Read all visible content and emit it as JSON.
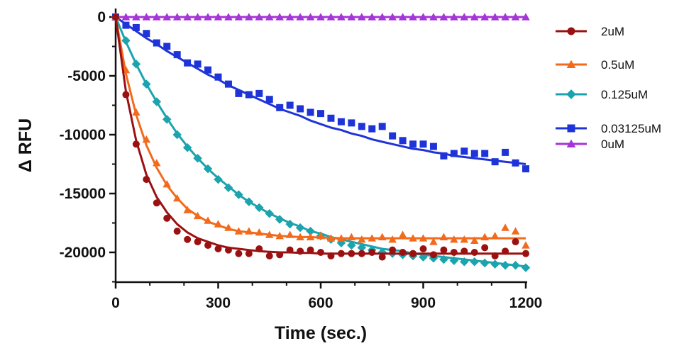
{
  "chart_data": {
    "type": "scatter",
    "title": "",
    "xlabel": "Time (sec.)",
    "ylabel": "Δ RFU",
    "xlim": [
      0,
      1200
    ],
    "ylim": [
      -22500,
      0
    ],
    "x_ticks": [
      0,
      300,
      600,
      900,
      1200
    ],
    "x_tick_labels": [
      "0",
      "300",
      "600",
      "900",
      "1200"
    ],
    "y_ticks": [
      0,
      -5000,
      -10000,
      -15000,
      -20000
    ],
    "y_tick_labels": [
      "0",
      "-5000",
      "-10000",
      "-15000",
      "-20000"
    ],
    "grid": false,
    "legend_position": "right",
    "series": [
      {
        "name": "2uM",
        "color": "#9b1111",
        "marker": "circle",
        "x": [
          0,
          30,
          60,
          90,
          120,
          150,
          180,
          210,
          240,
          270,
          300,
          330,
          360,
          390,
          420,
          450,
          480,
          510,
          540,
          570,
          600,
          630,
          660,
          690,
          720,
          750,
          780,
          810,
          840,
          870,
          900,
          930,
          960,
          990,
          1020,
          1050,
          1080,
          1110,
          1140,
          1170,
          1200
        ],
        "y": [
          0,
          -6600,
          -10800,
          -13800,
          -15800,
          -17100,
          -18200,
          -18900,
          -19100,
          -19400,
          -19700,
          -19800,
          -20100,
          -20100,
          -19700,
          -20300,
          -20200,
          -19800,
          -19900,
          -19800,
          -20000,
          -20300,
          -20100,
          -20100,
          -20100,
          -20000,
          -20400,
          -19800,
          -20000,
          -20100,
          -19700,
          -20200,
          -19800,
          -20000,
          -19900,
          -20000,
          -19600,
          -20300,
          -19900,
          -19100,
          -20100
        ],
        "fit": [
          0,
          -6300,
          -10500,
          -13400,
          -15300,
          -16600,
          -17600,
          -18300,
          -18800,
          -19100,
          -19400,
          -19600,
          -19700,
          -19800,
          -19900,
          -19950,
          -20000,
          -20000,
          -20050,
          -20050,
          -20100,
          -20100,
          -20100,
          -20100,
          -20100,
          -20100,
          -20100,
          -20100,
          -20100,
          -20100,
          -20100,
          -20100,
          -20100,
          -20100,
          -20100,
          -20100,
          -20100,
          -20100,
          -20100,
          -20100,
          -20100
        ]
      },
      {
        "name": "0.5uM",
        "color": "#f26b1d",
        "marker": "triangle",
        "x": [
          0,
          30,
          60,
          90,
          120,
          150,
          180,
          210,
          240,
          270,
          300,
          330,
          360,
          390,
          420,
          450,
          480,
          510,
          540,
          570,
          600,
          630,
          660,
          690,
          720,
          750,
          780,
          810,
          840,
          870,
          900,
          930,
          960,
          990,
          1020,
          1050,
          1080,
          1110,
          1140,
          1170,
          1200
        ],
        "y": [
          0,
          -4500,
          -8100,
          -10400,
          -12400,
          -14200,
          -15400,
          -16400,
          -16900,
          -17300,
          -17600,
          -17900,
          -18200,
          -18200,
          -18300,
          -18500,
          -18600,
          -18500,
          -18700,
          -18700,
          -18600,
          -18800,
          -18800,
          -18700,
          -18900,
          -18800,
          -18700,
          -18900,
          -18500,
          -18800,
          -18800,
          -19100,
          -18700,
          -18900,
          -18900,
          -19000,
          -18700,
          -18600,
          -17900,
          -18200,
          -19400
        ],
        "fit": [
          0,
          -4800,
          -8300,
          -10900,
          -12800,
          -14300,
          -15400,
          -16300,
          -16900,
          -17400,
          -17700,
          -18000,
          -18200,
          -18300,
          -18400,
          -18500,
          -18600,
          -18650,
          -18700,
          -18700,
          -18750,
          -18750,
          -18800,
          -18800,
          -18800,
          -18800,
          -18800,
          -18800,
          -18800,
          -18800,
          -18800,
          -18800,
          -18800,
          -18800,
          -18800,
          -18800,
          -18800,
          -18800,
          -18800,
          -18800,
          -18800
        ]
      },
      {
        "name": "0.125uM",
        "color": "#1ba3ae",
        "marker": "diamond",
        "x": [
          0,
          30,
          60,
          90,
          120,
          150,
          180,
          210,
          240,
          270,
          300,
          330,
          360,
          390,
          420,
          450,
          480,
          510,
          540,
          570,
          600,
          630,
          660,
          690,
          720,
          750,
          780,
          810,
          840,
          870,
          900,
          930,
          960,
          990,
          1020,
          1050,
          1080,
          1110,
          1140,
          1170,
          1200
        ],
        "y": [
          0,
          -2000,
          -4000,
          -5700,
          -7200,
          -8700,
          -10000,
          -11100,
          -12000,
          -12900,
          -13800,
          -14500,
          -15100,
          -15700,
          -16200,
          -16700,
          -17200,
          -17600,
          -17900,
          -18200,
          -18600,
          -18900,
          -19200,
          -19400,
          -19600,
          -19800,
          -20000,
          -20100,
          -20200,
          -20300,
          -20400,
          -20500,
          -20600,
          -20700,
          -20800,
          -20800,
          -20900,
          -21000,
          -21100,
          -21100,
          -21300
        ],
        "fit": [
          0,
          -2100,
          -4000,
          -5700,
          -7200,
          -8600,
          -9900,
          -11000,
          -12000,
          -12900,
          -13700,
          -14400,
          -15100,
          -15700,
          -16200,
          -16700,
          -17100,
          -17500,
          -17800,
          -18200,
          -18400,
          -18700,
          -18900,
          -19100,
          -19300,
          -19500,
          -19700,
          -19800,
          -19900,
          -20100,
          -20200,
          -20300,
          -20400,
          -20500,
          -20600,
          -20700,
          -20800,
          -20900,
          -21000,
          -21100,
          -21200
        ]
      },
      {
        "name": "0.03125uM",
        "color": "#1f34d8",
        "marker": "square",
        "x": [
          0,
          30,
          60,
          90,
          120,
          150,
          180,
          210,
          240,
          270,
          300,
          330,
          360,
          390,
          420,
          450,
          480,
          510,
          540,
          570,
          600,
          630,
          660,
          690,
          720,
          750,
          780,
          810,
          840,
          870,
          900,
          930,
          960,
          990,
          1020,
          1050,
          1080,
          1110,
          1140,
          1170,
          1200
        ],
        "y": [
          0,
          -700,
          -900,
          -1400,
          -2200,
          -2500,
          -3200,
          -3900,
          -4000,
          -4500,
          -5100,
          -5700,
          -6500,
          -6600,
          -6500,
          -7000,
          -7700,
          -7500,
          -7800,
          -8100,
          -8200,
          -8600,
          -8900,
          -9000,
          -9300,
          -9500,
          -9300,
          -10100,
          -10500,
          -10800,
          -10800,
          -11000,
          -11800,
          -11600,
          -11400,
          -11600,
          -11600,
          -12300,
          -11500,
          -12400,
          -12900
        ],
        "fit": [
          0,
          -600,
          -1200,
          -1800,
          -2300,
          -2900,
          -3400,
          -3900,
          -4400,
          -4900,
          -5300,
          -5800,
          -6200,
          -6600,
          -7000,
          -7400,
          -7800,
          -8100,
          -8400,
          -8800,
          -9100,
          -9400,
          -9600,
          -9900,
          -10100,
          -10400,
          -10600,
          -10800,
          -11000,
          -11200,
          -11300,
          -11500,
          -11600,
          -11800,
          -11900,
          -12000,
          -12100,
          -12200,
          -12300,
          -12400,
          -12500
        ]
      },
      {
        "name": "0uM",
        "color": "#a535d8",
        "marker": "triangle",
        "x": [
          0,
          30,
          60,
          90,
          120,
          150,
          180,
          210,
          240,
          270,
          300,
          330,
          360,
          390,
          420,
          450,
          480,
          510,
          540,
          570,
          600,
          630,
          660,
          690,
          720,
          750,
          780,
          810,
          840,
          870,
          900,
          930,
          960,
          990,
          1020,
          1050,
          1080,
          1110,
          1140,
          1170,
          1200
        ],
        "y": [
          0,
          0,
          0,
          0,
          0,
          0,
          0,
          0,
          0,
          0,
          0,
          0,
          0,
          0,
          0,
          0,
          0,
          0,
          0,
          0,
          0,
          0,
          0,
          0,
          0,
          0,
          0,
          0,
          0,
          0,
          0,
          0,
          0,
          0,
          0,
          0,
          0,
          0,
          0,
          0,
          0
        ],
        "fit": [
          0,
          0,
          0,
          0,
          0,
          0,
          0,
          0,
          0,
          0,
          0,
          0,
          0,
          0,
          0,
          0,
          0,
          0,
          0,
          0,
          0,
          0,
          0,
          0,
          0,
          0,
          0,
          0,
          0,
          0,
          0,
          0,
          0,
          0,
          0,
          0,
          0,
          0,
          0,
          0,
          0
        ]
      }
    ]
  }
}
